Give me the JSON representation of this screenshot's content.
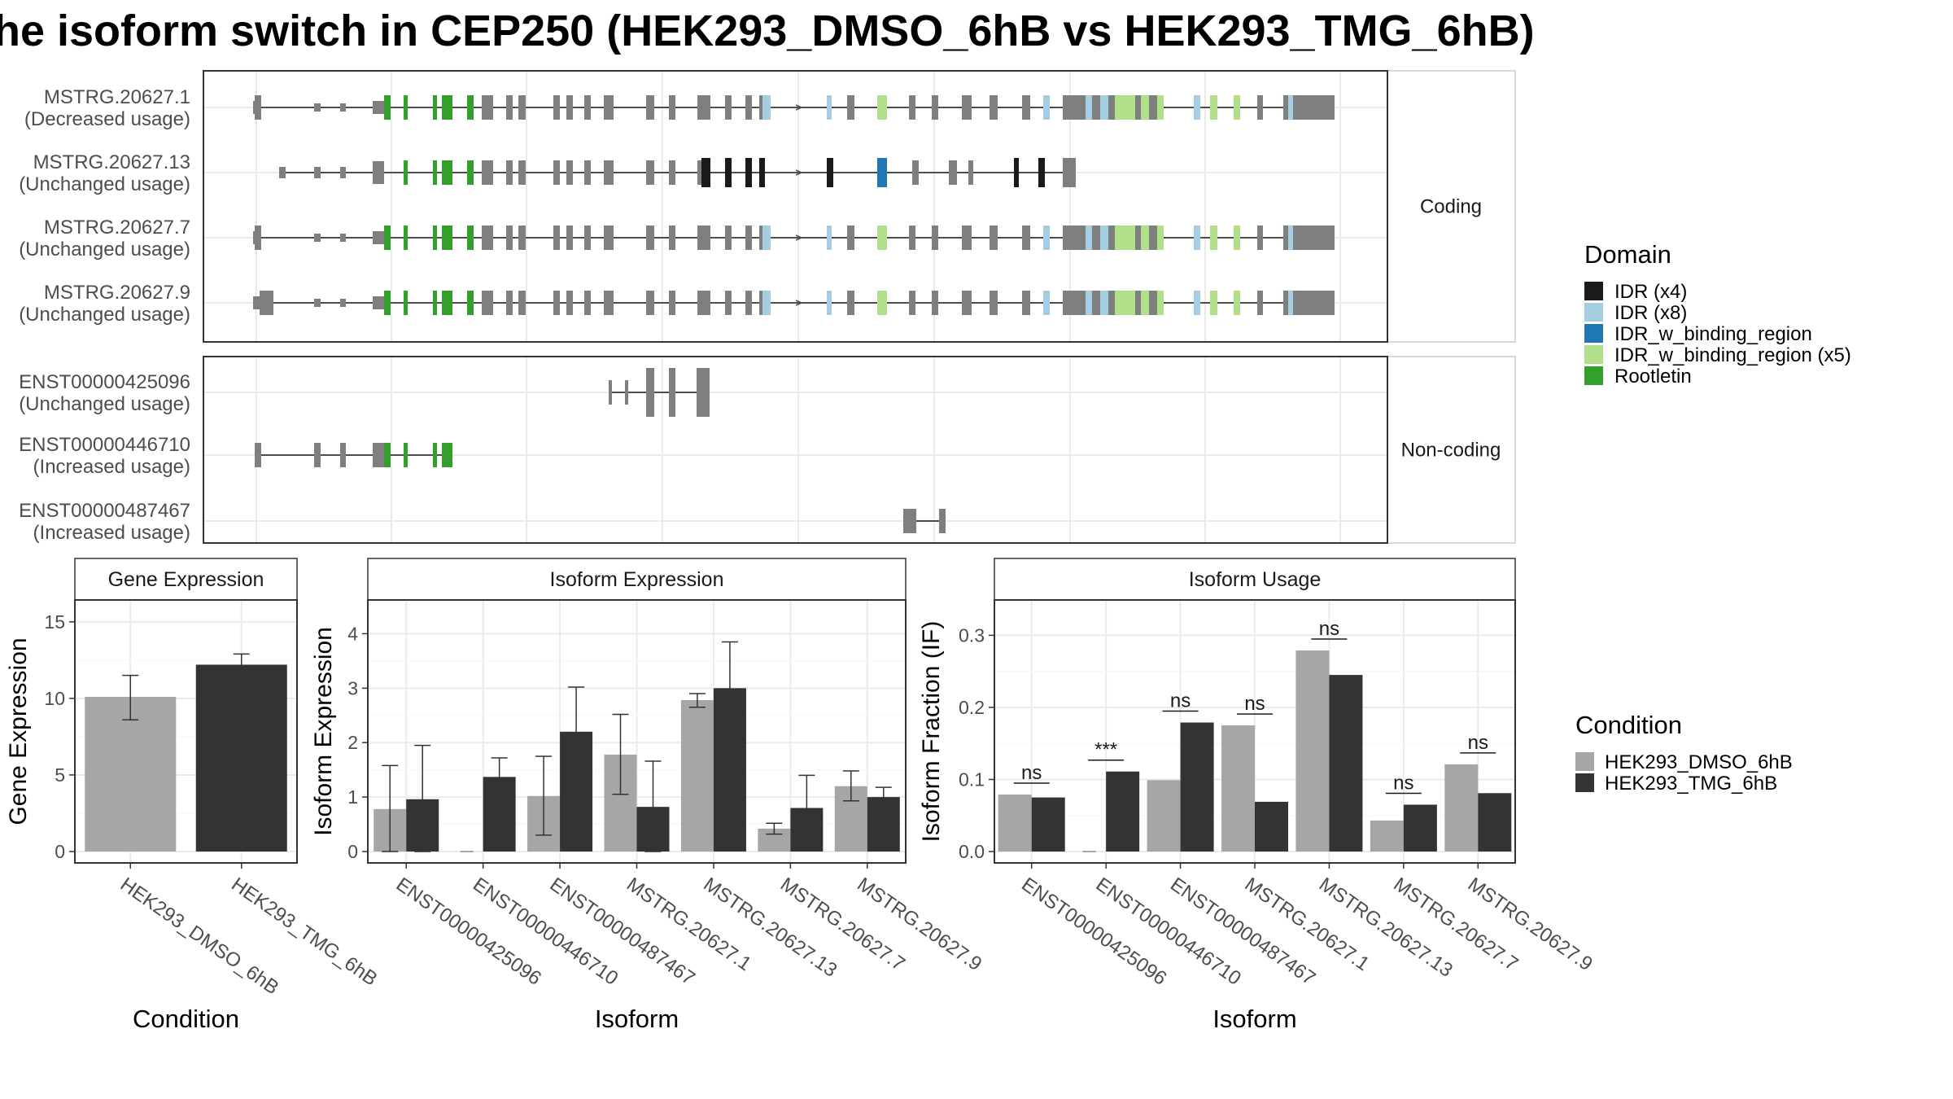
{
  "title": "he isoform switch in CEP250 (HEK293_DMSO_6hB vs HEK293_TMG_6hB)",
  "colors": {
    "dmso": "#a6a6a6",
    "tmg": "#333333",
    "exon": "#7f7f7f",
    "IDR": "#1a1a1a",
    "IDR_x8": "#a6cee3",
    "IDR_w_binding_region": "#1f78b4",
    "IDR_w_binding_region_x5": "#b2df8a",
    "Rootletin": "#33a02c"
  },
  "structure": {
    "panels": [
      {
        "strip": "Coding",
        "isoforms": [
          {
            "id": "MSTRG.20627.1",
            "usage": "(Decreased usage)",
            "template": "full",
            "left_small": true
          },
          {
            "id": "MSTRG.20627.13",
            "usage": "(Unchanged usage)",
            "template": "isoform13"
          },
          {
            "id": "MSTRG.20627.7",
            "usage": "(Unchanged usage)",
            "template": "full",
            "left_small": true
          },
          {
            "id": "MSTRG.20627.9",
            "usage": "(Unchanged usage)",
            "template": "full",
            "left_small": false
          }
        ]
      },
      {
        "strip": "Non-coding",
        "isoforms": [
          {
            "id": "ENST00000425096",
            "usage": "(Unchanged usage)",
            "template": "enst425096"
          },
          {
            "id": "ENST00000446710",
            "usage": "(Increased usage)",
            "template": "enst446710"
          },
          {
            "id": "ENST00000487467",
            "usage": "(Increased usage)",
            "template": "enst487467"
          }
        ]
      }
    ],
    "domain_legend": {
      "title": "Domain",
      "items": [
        {
          "label": "IDR (x4)",
          "color": "#1a1a1a"
        },
        {
          "label": "IDR (x8)",
          "color": "#a6cee3"
        },
        {
          "label": "IDR_w_binding_region",
          "color": "#1f78b4"
        },
        {
          "label": "IDR_w_binding_region (x5)",
          "color": "#b2df8a"
        },
        {
          "label": "Rootletin",
          "color": "#33a02c"
        }
      ]
    }
  },
  "chart_data": [
    {
      "type": "bar",
      "title": "Gene Expression",
      "xlabel": "Condition",
      "ylabel": "Gene Expression",
      "ylim": [
        0,
        16
      ],
      "yticks": [
        0,
        5,
        10,
        15
      ],
      "categories": [
        "HEK293_DMSO_6hB",
        "HEK293_TMG_6hB"
      ],
      "values": [
        10.1,
        12.2
      ],
      "err_low": [
        8.6,
        11.6
      ],
      "err_high": [
        11.5,
        12.9
      ]
    },
    {
      "type": "bar",
      "title": "Isoform Expression",
      "xlabel": "Isoform",
      "ylabel": "Isoform Expression",
      "ylim": [
        0,
        4.5
      ],
      "yticks": [
        0,
        1,
        2,
        3,
        4
      ],
      "categories": [
        "ENST00000425096",
        "ENST00000446710",
        "ENST00000487467",
        "MSTRG.20627.1",
        "MSTRG.20627.13",
        "MSTRG.20627.7",
        "MSTRG.20627.9"
      ],
      "series": [
        {
          "name": "HEK293_DMSO_6hB",
          "values": [
            0.78,
            0.0,
            1.02,
            1.78,
            2.78,
            0.42,
            1.2
          ],
          "err_low": [
            0.0,
            0.0,
            0.3,
            1.05,
            2.65,
            0.32,
            0.93
          ],
          "err_high": [
            1.58,
            0.0,
            1.75,
            2.52,
            2.9,
            0.52,
            1.48
          ]
        },
        {
          "name": "HEK293_TMG_6hB",
          "values": [
            0.96,
            1.37,
            2.2,
            0.82,
            3.0,
            0.8,
            1.0
          ],
          "err_low": [
            0.0,
            1.02,
            1.38,
            0.0,
            2.15,
            0.2,
            0.83
          ],
          "err_high": [
            1.95,
            1.72,
            3.02,
            1.66,
            3.85,
            1.4,
            1.18
          ]
        }
      ]
    },
    {
      "type": "bar",
      "title": "Isoform Usage",
      "xlabel": "Isoform",
      "ylabel": "Isoform Fraction (IF)",
      "ylim": [
        0,
        0.34
      ],
      "yticks": [
        0.0,
        0.1,
        0.2,
        0.3
      ],
      "ytick_labels": [
        "0.0",
        "0.1",
        "0.2",
        "0.3"
      ],
      "categories": [
        "ENST00000425096",
        "ENST00000446710",
        "ENST00000487467",
        "MSTRG.20627.1",
        "MSTRG.20627.13",
        "MSTRG.20627.7",
        "MSTRG.20627.9"
      ],
      "series": [
        {
          "name": "HEK293_DMSO_6hB",
          "values": [
            0.079,
            0.0,
            0.099,
            0.175,
            0.279,
            0.043,
            0.121
          ]
        },
        {
          "name": "HEK293_TMG_6hB",
          "values": [
            0.075,
            0.111,
            0.179,
            0.069,
            0.245,
            0.065,
            0.081
          ]
        }
      ],
      "significance": [
        "ns",
        "***",
        "ns",
        "ns",
        "ns",
        "ns",
        "ns"
      ]
    }
  ],
  "condition_legend": {
    "title": "Condition",
    "items": [
      {
        "label": "HEK293_DMSO_6hB",
        "color": "#a6a6a6"
      },
      {
        "label": "HEK293_TMG_6hB",
        "color": "#333333"
      }
    ]
  }
}
